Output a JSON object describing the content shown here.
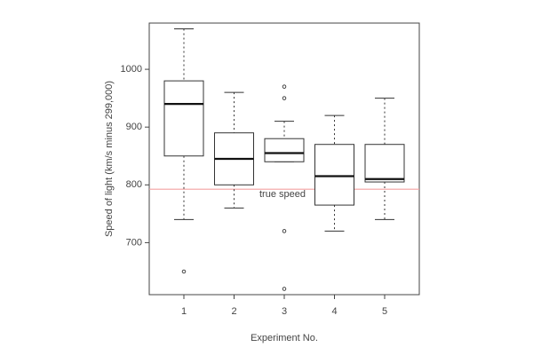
{
  "chart_data": {
    "type": "boxplot",
    "xlabel": "Experiment No.",
    "ylabel": "Speed of light (km/s minus 299,000)",
    "categories": [
      "1",
      "2",
      "3",
      "4",
      "5"
    ],
    "yticks": [
      700,
      800,
      900,
      1000
    ],
    "ylim": [
      610,
      1080
    ],
    "boxes": [
      {
        "name": "1",
        "whisker_low": 740,
        "q1": 850,
        "median": 940,
        "q3": 980,
        "whisker_high": 1070,
        "outliers": [
          650
        ]
      },
      {
        "name": "2",
        "whisker_low": 760,
        "q1": 800,
        "median": 845,
        "q3": 890,
        "whisker_high": 960,
        "outliers": []
      },
      {
        "name": "3",
        "whisker_low": 840,
        "q1": 840,
        "median": 855,
        "q3": 880,
        "whisker_high": 910,
        "outliers": [
          620,
          720,
          950,
          970
        ]
      },
      {
        "name": "4",
        "whisker_low": 720,
        "q1": 765,
        "median": 815,
        "q3": 870,
        "whisker_high": 920,
        "outliers": []
      },
      {
        "name": "5",
        "whisker_low": 740,
        "q1": 805,
        "median": 810,
        "q3": 870,
        "whisker_high": 950,
        "outliers": []
      }
    ],
    "reference_line": {
      "label": "true speed",
      "value": 792.458,
      "color": "#f4a0a0"
    },
    "grid": false,
    "legend": "none"
  }
}
